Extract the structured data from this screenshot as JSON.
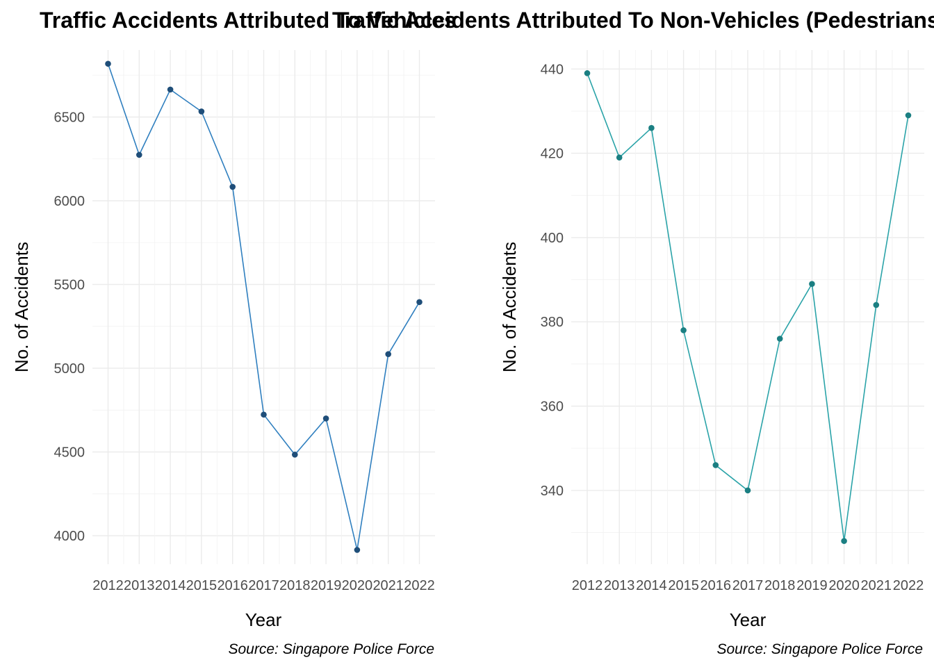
{
  "chart_data": [
    {
      "type": "line",
      "title": "Traffic Accidents Attributed To Vehicles",
      "xlabel": "Year",
      "ylabel": "No. of Accidents",
      "caption": "Source: Singapore Police Force",
      "x": [
        2012,
        2013,
        2014,
        2015,
        2016,
        2017,
        2018,
        2019,
        2020,
        2021,
        2022
      ],
      "series": [
        {
          "values": [
            6818,
            6274,
            6664,
            6533,
            6083,
            4723,
            4484,
            4700,
            3915,
            5084,
            5395
          ]
        }
      ],
      "x_ticks": [
        "2012",
        "2013",
        "2014",
        "2015",
        "2016",
        "2017",
        "2018",
        "2019",
        "2020",
        "2021",
        "2022"
      ],
      "y_ticks": [
        "4000",
        "4500",
        "5000",
        "5500",
        "6000",
        "6500"
      ],
      "ylim": [
        3830,
        6900
      ],
      "grid": true,
      "colors": {
        "line": "#2f7fbf",
        "point": "#1f4e79"
      }
    },
    {
      "type": "line",
      "title": "Traffic Accidents Attributed To Non-Vehicles (Pedestrians)",
      "xlabel": "Year",
      "ylabel": "No. of Accidents",
      "caption": "Source: Singapore Police Force",
      "x": [
        2012,
        2013,
        2014,
        2015,
        2016,
        2017,
        2018,
        2019,
        2020,
        2021,
        2022
      ],
      "series": [
        {
          "values": [
            439,
            419,
            426,
            378,
            346,
            340,
            376,
            389,
            328,
            384,
            429
          ]
        }
      ],
      "x_ticks": [
        "2012",
        "2013",
        "2014",
        "2015",
        "2016",
        "2017",
        "2018",
        "2019",
        "2020",
        "2021",
        "2022"
      ],
      "y_ticks": [
        "340",
        "360",
        "380",
        "400",
        "420",
        "440"
      ],
      "ylim": [
        322.5,
        444.5
      ],
      "grid": true,
      "colors": {
        "line": "#2aa3a8",
        "point": "#1b7f82"
      }
    }
  ]
}
